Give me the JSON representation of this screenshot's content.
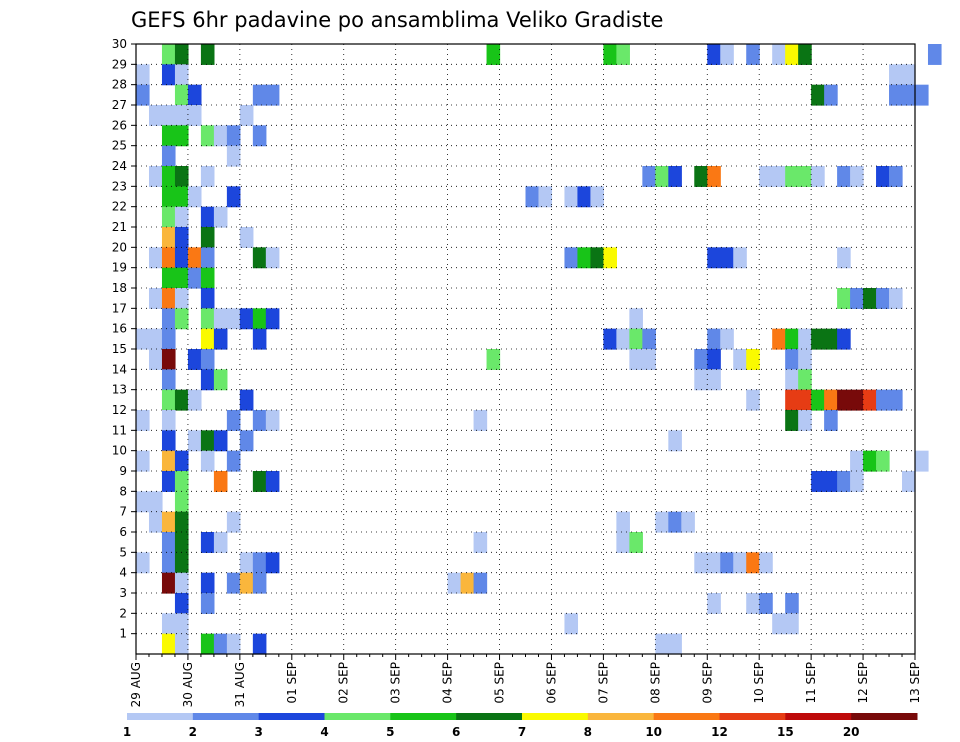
{
  "chart_data": {
    "type": "heatmap",
    "title": "GEFS 6hr padavine po ansamblima Veliko Gradiste",
    "x_tick_labels": [
      "29 AUG",
      "30 AUG",
      "31 AUG",
      "01 SEP",
      "02 SEP",
      "03 SEP",
      "04 SEP",
      "05 SEP",
      "06 SEP",
      "07 SEP",
      "08 SEP",
      "09 SEP",
      "10 SEP",
      "11 SEP",
      "12 SEP",
      "13 SEP"
    ],
    "y_tick_labels": [
      "1",
      "2",
      "3",
      "4",
      "5",
      "6",
      "7",
      "8",
      "9",
      "10",
      "11",
      "12",
      "13",
      "14",
      "15",
      "16",
      "17",
      "18",
      "19",
      "20",
      "21",
      "22",
      "23",
      "24",
      "25",
      "26",
      "27",
      "28",
      "29",
      "30"
    ],
    "ylim": [
      0,
      30
    ],
    "grid": true,
    "colorbar": {
      "ticks": [
        "1",
        "2",
        "3",
        "4",
        "5",
        "6",
        "7",
        "8",
        "10",
        "12",
        "15",
        "20"
      ],
      "colors": [
        "#b4c8f4",
        "#6088e8",
        "#1c46dc",
        "#6ae86a",
        "#18c418",
        "#0a7414",
        "#fafa00",
        "#fab63c",
        "#fa7814",
        "#e63c14",
        "#be0a0a",
        "#780a0a"
      ]
    },
    "color_scale": [
      "#b4c8f4",
      "#6088e8",
      "#1c46dc",
      "#6ae86a",
      "#18c418",
      "#0a7414",
      "#fafa00",
      "#fab63c",
      "#fa7814",
      "#e63c14",
      "#be0a0a",
      "#780a0a"
    ],
    "cells": [
      {
        "member": 30,
        "t": [
          [
            2,
            3
          ],
          [
            3,
            5
          ],
          [
            5,
            5
          ],
          [
            27,
            4
          ],
          [
            36,
            4
          ],
          [
            37,
            3
          ],
          [
            44,
            2
          ],
          [
            45,
            0
          ],
          [
            47,
            1
          ],
          [
            49,
            0
          ],
          [
            50,
            6
          ],
          [
            51,
            5
          ],
          [
            61,
            1
          ]
        ]
      },
      {
        "member": 29,
        "t": [
          [
            0,
            0
          ],
          [
            2,
            2
          ],
          [
            3,
            0
          ],
          [
            58,
            0
          ],
          [
            59,
            0
          ]
        ]
      },
      {
        "member": 28,
        "t": [
          [
            0,
            1
          ],
          [
            3,
            3
          ],
          [
            4,
            2
          ],
          [
            9,
            1
          ],
          [
            10,
            1
          ],
          [
            52,
            5
          ],
          [
            53,
            1
          ],
          [
            58,
            1
          ],
          [
            59,
            1
          ],
          [
            60,
            1
          ]
        ]
      },
      {
        "member": 27,
        "t": [
          [
            1,
            0
          ],
          [
            2,
            0
          ],
          [
            3,
            0
          ],
          [
            4,
            0
          ],
          [
            8,
            0
          ]
        ]
      },
      {
        "member": 26,
        "t": [
          [
            2,
            4
          ],
          [
            3,
            4
          ],
          [
            5,
            3
          ],
          [
            6,
            0
          ],
          [
            7,
            1
          ],
          [
            9,
            1
          ]
        ]
      },
      {
        "member": 25,
        "t": [
          [
            2,
            1
          ],
          [
            7,
            0
          ]
        ]
      },
      {
        "member": 24,
        "t": [
          [
            1,
            0
          ],
          [
            2,
            4
          ],
          [
            3,
            5
          ],
          [
            5,
            0
          ],
          [
            39,
            1
          ],
          [
            40,
            3
          ],
          [
            41,
            2
          ],
          [
            43,
            5
          ],
          [
            44,
            8
          ],
          [
            48,
            0
          ],
          [
            49,
            0
          ],
          [
            50,
            3
          ],
          [
            51,
            3
          ],
          [
            52,
            0
          ],
          [
            54,
            1
          ],
          [
            55,
            0
          ],
          [
            57,
            2
          ],
          [
            58,
            1
          ]
        ]
      },
      {
        "member": 23,
        "t": [
          [
            2,
            4
          ],
          [
            3,
            4
          ],
          [
            4,
            0
          ],
          [
            7,
            2
          ],
          [
            30,
            1
          ],
          [
            31,
            0
          ],
          [
            33,
            0
          ],
          [
            34,
            2
          ],
          [
            35,
            0
          ]
        ]
      },
      {
        "member": 22,
        "t": [
          [
            2,
            3
          ],
          [
            3,
            0
          ],
          [
            5,
            2
          ],
          [
            6,
            0
          ]
        ]
      },
      {
        "member": 21,
        "t": [
          [
            2,
            7
          ],
          [
            3,
            2
          ],
          [
            5,
            5
          ],
          [
            8,
            0
          ]
        ]
      },
      {
        "member": 20,
        "t": [
          [
            1,
            0
          ],
          [
            2,
            8
          ],
          [
            3,
            2
          ],
          [
            4,
            8
          ],
          [
            5,
            1
          ],
          [
            9,
            5
          ],
          [
            10,
            0
          ],
          [
            33,
            1
          ],
          [
            34,
            4
          ],
          [
            35,
            5
          ],
          [
            36,
            6
          ],
          [
            44,
            2
          ],
          [
            45,
            2
          ],
          [
            46,
            0
          ],
          [
            54,
            0
          ]
        ]
      },
      {
        "member": 19,
        "t": [
          [
            2,
            4
          ],
          [
            3,
            4
          ],
          [
            4,
            1
          ],
          [
            5,
            4
          ]
        ]
      },
      {
        "member": 18,
        "t": [
          [
            1,
            0
          ],
          [
            2,
            8
          ],
          [
            3,
            0
          ],
          [
            5,
            2
          ],
          [
            54,
            3
          ],
          [
            55,
            1
          ],
          [
            56,
            5
          ],
          [
            57,
            1
          ],
          [
            58,
            0
          ]
        ]
      },
      {
        "member": 17,
        "t": [
          [
            2,
            1
          ],
          [
            3,
            3
          ],
          [
            5,
            3
          ],
          [
            6,
            0
          ],
          [
            7,
            0
          ],
          [
            8,
            2
          ],
          [
            9,
            4
          ],
          [
            10,
            2
          ],
          [
            38,
            0
          ]
        ]
      },
      {
        "member": 16,
        "t": [
          [
            0,
            0
          ],
          [
            1,
            0
          ],
          [
            2,
            1
          ],
          [
            5,
            6
          ],
          [
            6,
            2
          ],
          [
            9,
            2
          ],
          [
            36,
            2
          ],
          [
            37,
            0
          ],
          [
            38,
            3
          ],
          [
            39,
            1
          ],
          [
            44,
            1
          ],
          [
            45,
            0
          ],
          [
            49,
            8
          ],
          [
            50,
            4
          ],
          [
            51,
            0
          ],
          [
            52,
            5
          ],
          [
            53,
            5
          ],
          [
            54,
            2
          ]
        ]
      },
      {
        "member": 15,
        "t": [
          [
            1,
            0
          ],
          [
            2,
            11
          ],
          [
            4,
            2
          ],
          [
            5,
            1
          ],
          [
            27,
            3
          ],
          [
            38,
            0
          ],
          [
            39,
            0
          ],
          [
            43,
            1
          ],
          [
            44,
            2
          ],
          [
            46,
            0
          ],
          [
            47,
            6
          ],
          [
            50,
            1
          ],
          [
            51,
            0
          ]
        ]
      },
      {
        "member": 14,
        "t": [
          [
            2,
            1
          ],
          [
            5,
            2
          ],
          [
            6,
            3
          ],
          [
            43,
            0
          ],
          [
            44,
            0
          ],
          [
            50,
            0
          ],
          [
            51,
            3
          ]
        ]
      },
      {
        "member": 13,
        "t": [
          [
            2,
            3
          ],
          [
            3,
            5
          ],
          [
            4,
            0
          ],
          [
            8,
            2
          ],
          [
            47,
            0
          ],
          [
            50,
            9
          ],
          [
            51,
            9
          ],
          [
            52,
            4
          ],
          [
            53,
            8
          ],
          [
            54,
            11
          ],
          [
            55,
            11
          ],
          [
            56,
            9
          ],
          [
            57,
            1
          ],
          [
            58,
            1
          ]
        ]
      },
      {
        "member": 12,
        "t": [
          [
            0,
            0
          ],
          [
            2,
            0
          ],
          [
            7,
            1
          ],
          [
            9,
            1
          ],
          [
            10,
            0
          ],
          [
            26,
            0
          ],
          [
            50,
            5
          ],
          [
            51,
            0
          ],
          [
            53,
            1
          ]
        ]
      },
      {
        "member": 11,
        "t": [
          [
            2,
            2
          ],
          [
            4,
            0
          ],
          [
            5,
            5
          ],
          [
            6,
            2
          ],
          [
            8,
            1
          ],
          [
            41,
            0
          ]
        ]
      },
      {
        "member": 10,
        "t": [
          [
            0,
            0
          ],
          [
            2,
            7
          ],
          [
            3,
            2
          ],
          [
            5,
            0
          ],
          [
            7,
            1
          ],
          [
            55,
            0
          ],
          [
            56,
            4
          ],
          [
            57,
            3
          ],
          [
            60,
            0
          ]
        ]
      },
      {
        "member": 9,
        "t": [
          [
            2,
            2
          ],
          [
            3,
            3
          ],
          [
            6,
            8
          ],
          [
            9,
            5
          ],
          [
            10,
            2
          ],
          [
            52,
            2
          ],
          [
            53,
            2
          ],
          [
            54,
            1
          ],
          [
            55,
            0
          ],
          [
            59,
            0
          ]
        ]
      },
      {
        "member": 8,
        "t": [
          [
            0,
            0
          ],
          [
            1,
            0
          ],
          [
            3,
            3
          ]
        ]
      },
      {
        "member": 7,
        "t": [
          [
            1,
            0
          ],
          [
            2,
            7
          ],
          [
            3,
            5
          ],
          [
            7,
            0
          ],
          [
            37,
            0
          ],
          [
            40,
            0
          ],
          [
            41,
            1
          ],
          [
            42,
            0
          ]
        ]
      },
      {
        "member": 6,
        "t": [
          [
            2,
            1
          ],
          [
            3,
            5
          ],
          [
            5,
            2
          ],
          [
            6,
            0
          ],
          [
            26,
            0
          ],
          [
            37,
            0
          ],
          [
            38,
            3
          ]
        ]
      },
      {
        "member": 5,
        "t": [
          [
            0,
            0
          ],
          [
            2,
            1
          ],
          [
            3,
            5
          ],
          [
            8,
            0
          ],
          [
            9,
            1
          ],
          [
            10,
            2
          ],
          [
            43,
            0
          ],
          [
            44,
            0
          ],
          [
            45,
            1
          ],
          [
            46,
            0
          ],
          [
            47,
            8
          ],
          [
            48,
            0
          ]
        ]
      },
      {
        "member": 4,
        "t": [
          [
            2,
            11
          ],
          [
            3,
            0
          ],
          [
            5,
            2
          ],
          [
            7,
            1
          ],
          [
            8,
            7
          ],
          [
            9,
            1
          ],
          [
            24,
            0
          ],
          [
            25,
            7
          ],
          [
            26,
            1
          ]
        ]
      },
      {
        "member": 3,
        "t": [
          [
            3,
            2
          ],
          [
            5,
            1
          ],
          [
            44,
            0
          ],
          [
            47,
            0
          ],
          [
            48,
            1
          ],
          [
            50,
            1
          ]
        ]
      },
      {
        "member": 2,
        "t": [
          [
            2,
            0
          ],
          [
            3,
            0
          ],
          [
            33,
            0
          ],
          [
            49,
            0
          ],
          [
            50,
            0
          ]
        ]
      },
      {
        "member": 1,
        "t": [
          [
            2,
            6
          ],
          [
            3,
            0
          ],
          [
            5,
            4
          ],
          [
            6,
            1
          ],
          [
            7,
            0
          ],
          [
            9,
            2
          ],
          [
            40,
            0
          ],
          [
            41,
            0
          ]
        ]
      }
    ]
  }
}
